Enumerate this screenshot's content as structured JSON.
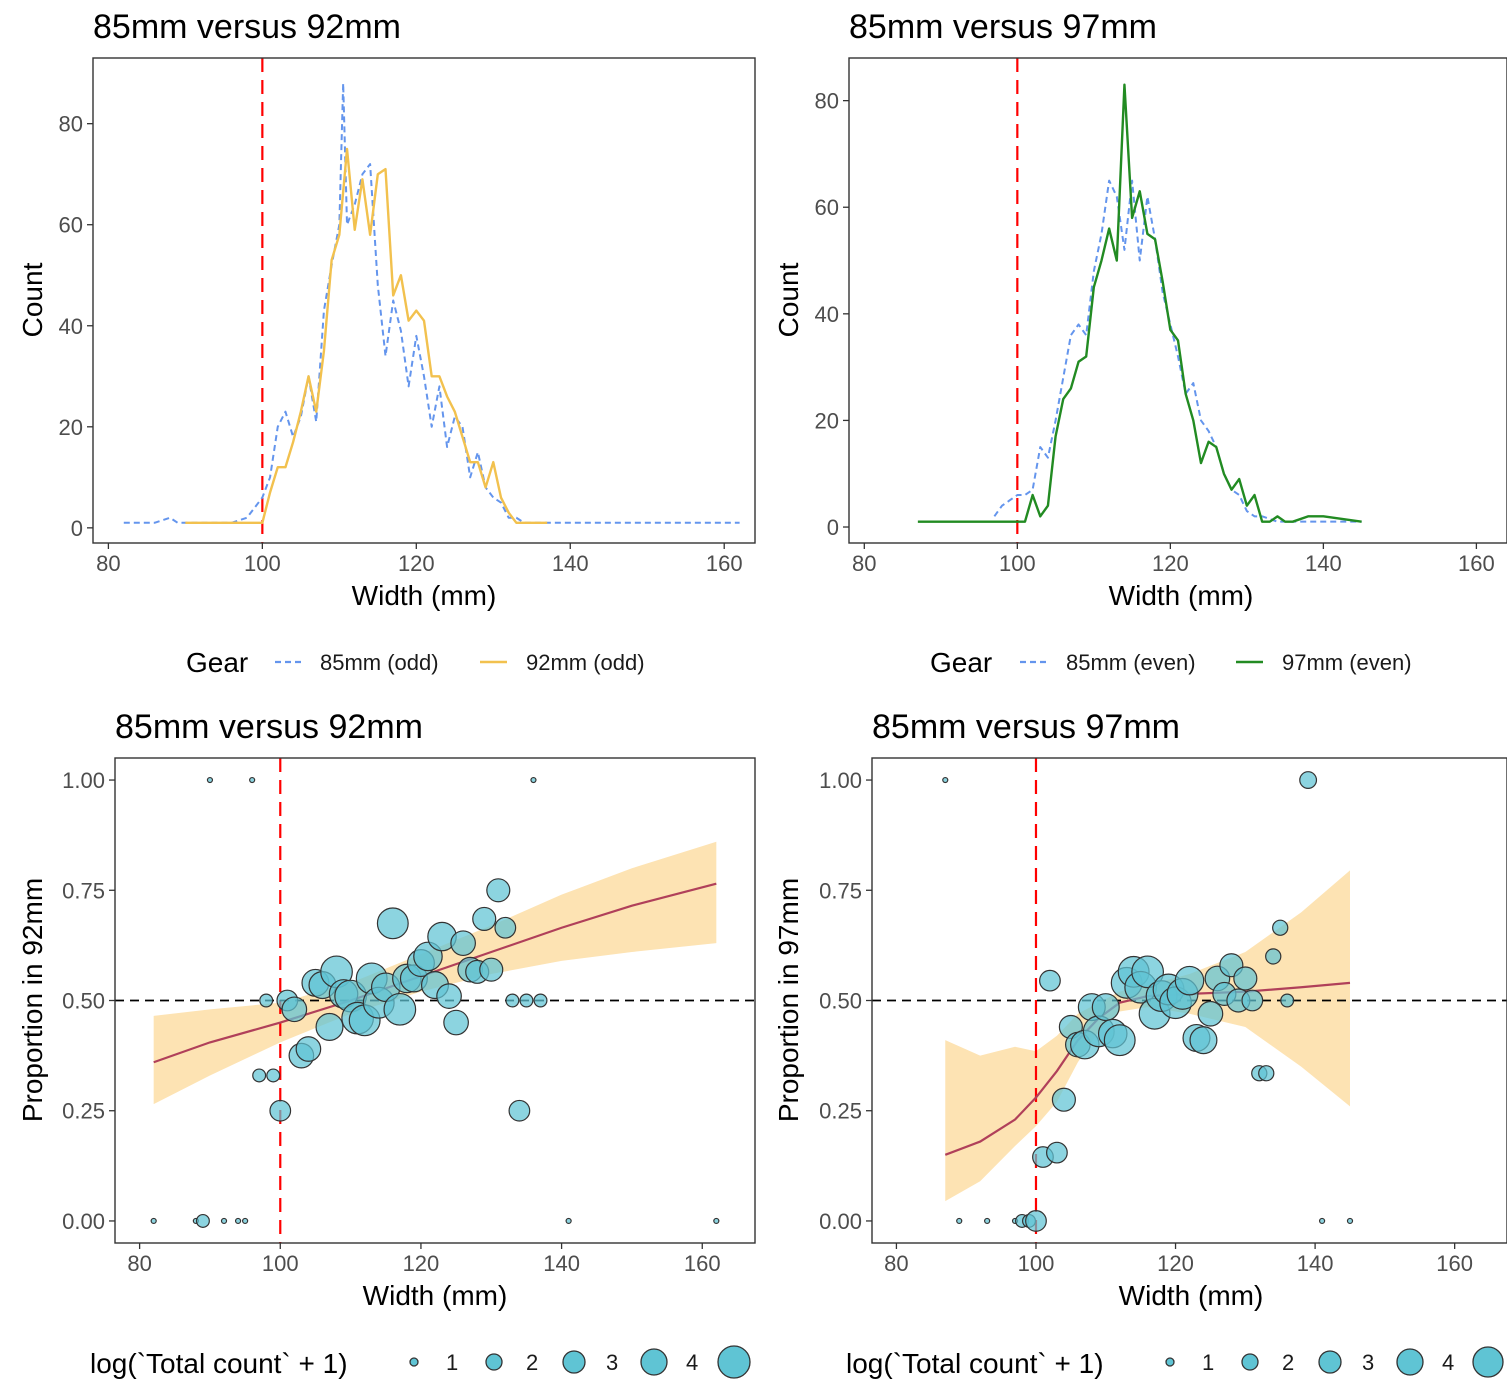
{
  "chart_data": [
    {
      "type": "line",
      "title": "85mm versus 92mm",
      "xlabel": "Width (mm)",
      "ylabel": "Count",
      "xlim": [
        78,
        164
      ],
      "ylim": [
        -3,
        93
      ],
      "xticks": [
        80,
        100,
        120,
        140,
        160
      ],
      "yticks": [
        0,
        20,
        40,
        60,
        80
      ],
      "grid": false,
      "reference_lines": [
        {
          "axis": "x",
          "value": 100,
          "color": "#ff0000",
          "style": "dashed"
        }
      ],
      "legend": {
        "title": "Gear",
        "position": "bottom"
      },
      "series": [
        {
          "name": "85mm (odd)",
          "color": "#6495ed",
          "style": "dashed",
          "x": [
            82,
            86,
            88,
            89,
            90,
            92,
            94,
            96,
            98,
            99,
            100,
            101,
            102,
            103,
            104,
            105,
            106,
            107,
            108,
            109,
            110,
            110.5,
            111,
            112,
            113,
            114,
            115,
            116,
            117,
            118,
            119,
            120,
            121,
            122,
            123,
            124,
            125,
            126,
            127,
            128,
            129,
            130,
            131,
            132,
            133,
            134,
            136,
            140,
            150,
            162
          ],
          "y": [
            1,
            1,
            2,
            1,
            1,
            1,
            1,
            1,
            2,
            4,
            6,
            10,
            20,
            23,
            18,
            22,
            30,
            21,
            43,
            52,
            60,
            88,
            60,
            64,
            70,
            72,
            48,
            34,
            45,
            39,
            28,
            38,
            30,
            20,
            28,
            16,
            22,
            20,
            10,
            15,
            8,
            6,
            5,
            2,
            2,
            1,
            1,
            1,
            1,
            1
          ]
        },
        {
          "name": "92mm (odd)",
          "color": "#f2c14e",
          "style": "solid",
          "x": [
            90,
            94,
            98,
            99,
            100,
            101,
            102,
            103,
            104,
            105,
            106,
            107,
            108,
            109,
            110,
            111,
            112,
            113,
            114,
            115,
            116,
            117,
            118,
            119,
            120,
            121,
            122,
            123,
            124,
            125,
            126,
            127,
            128,
            129,
            130,
            131,
            132,
            133,
            134,
            137
          ],
          "y": [
            1,
            1,
            1,
            1,
            1,
            7,
            12,
            12,
            17,
            23,
            30,
            23,
            35,
            53,
            58,
            75,
            59,
            69,
            58,
            70,
            71,
            46,
            50,
            41,
            43,
            41,
            30,
            30,
            26,
            23,
            18,
            13,
            13,
            8,
            13,
            6,
            3,
            1,
            1,
            1
          ]
        }
      ]
    },
    {
      "type": "line",
      "title": "85mm versus 97mm",
      "xlabel": "Width (mm)",
      "ylabel": "Count",
      "xlim": [
        78,
        164
      ],
      "ylim": [
        -3,
        88
      ],
      "xticks": [
        80,
        100,
        120,
        140,
        160
      ],
      "yticks": [
        0,
        20,
        40,
        60,
        80
      ],
      "grid": false,
      "reference_lines": [
        {
          "axis": "x",
          "value": 100,
          "color": "#ff0000",
          "style": "dashed"
        }
      ],
      "legend": {
        "title": "Gear",
        "position": "bottom"
      },
      "series": [
        {
          "name": "85mm (even)",
          "color": "#6495ed",
          "style": "dashed",
          "x": [
            97,
            98,
            99,
            100,
            101,
            102,
            103,
            104,
            105,
            106,
            107,
            108,
            109,
            110,
            111,
            112,
            113,
            114,
            115,
            116,
            117,
            118,
            119,
            120,
            121,
            122,
            123,
            124,
            125,
            126,
            127,
            128,
            129,
            130,
            131,
            132,
            134,
            136,
            140,
            145
          ],
          "y": [
            2,
            4,
            5,
            6,
            6,
            7,
            15,
            13,
            20,
            28,
            36,
            38,
            36,
            48,
            55,
            65,
            62,
            52,
            65,
            50,
            62,
            54,
            44,
            38,
            32,
            25,
            27,
            20,
            18,
            15,
            10,
            7,
            6,
            3,
            2,
            2,
            1,
            1,
            1,
            1
          ]
        },
        {
          "name": "97mm (even)",
          "color": "#228b22",
          "style": "solid",
          "x": [
            87,
            100,
            101,
            102,
            103,
            104,
            105,
            106,
            107,
            108,
            109,
            110,
            111,
            112,
            113,
            114,
            115,
            116,
            117,
            118,
            119,
            120,
            121,
            122,
            123,
            124,
            125,
            126,
            127,
            128,
            129,
            130,
            131,
            132,
            133,
            134,
            135,
            136,
            138,
            140,
            145
          ],
          "y": [
            1,
            1,
            1,
            6,
            2,
            4,
            17,
            24,
            26,
            31,
            32,
            45,
            50,
            56,
            50,
            83,
            58,
            63,
            55,
            54,
            46,
            37,
            35,
            25,
            20,
            12,
            16,
            15,
            10,
            7,
            9,
            4,
            6,
            1,
            1,
            2,
            1,
            1,
            2,
            2,
            1
          ]
        }
      ]
    },
    {
      "type": "scatter",
      "title": "85mm versus 92mm",
      "xlabel": "Width (mm)",
      "ylabel": "Proportion in 92mm",
      "xlim": [
        76.5,
        167.5
      ],
      "ylim": [
        -0.05,
        1.05
      ],
      "xticks": [
        80,
        100,
        120,
        140,
        160
      ],
      "yticks": [
        "0.00",
        "0.25",
        "0.50",
        "0.75",
        "1.00"
      ],
      "grid": false,
      "reference_lines": [
        {
          "axis": "x",
          "value": 100,
          "color": "#ff0000",
          "style": "dashed"
        },
        {
          "axis": "y",
          "value": 0.5,
          "color": "#000000",
          "style": "dashed"
        }
      ],
      "legend": {
        "title": "log(`Total count` + 1)",
        "position": "bottom",
        "sizes": [
          1,
          2,
          3,
          4
        ]
      },
      "fit": {
        "color": "#b0405a",
        "x": [
          82,
          90,
          100,
          110,
          120,
          130,
          140,
          150,
          162
        ],
        "y": [
          0.36,
          0.405,
          0.45,
          0.5,
          0.555,
          0.61,
          0.665,
          0.715,
          0.765
        ],
        "lower": [
          0.265,
          0.33,
          0.405,
          0.47,
          0.52,
          0.56,
          0.59,
          0.61,
          0.63
        ],
        "upper": [
          0.465,
          0.48,
          0.495,
          0.54,
          0.605,
          0.67,
          0.74,
          0.8,
          0.86
        ]
      },
      "points": {
        "x": [
          82,
          88,
          89,
          92,
          94,
          95,
          90,
          96,
          136,
          141,
          162,
          97,
          99,
          98,
          100,
          101,
          102,
          103,
          104,
          105,
          106,
          107,
          108,
          109,
          110,
          111,
          112,
          113,
          114,
          115,
          116,
          117,
          118,
          119,
          120,
          121,
          122,
          123,
          124,
          125,
          126,
          127,
          128,
          129,
          130,
          131,
          132,
          133,
          134,
          135,
          137
        ],
        "y": [
          0,
          0,
          0,
          0,
          0,
          0,
          1,
          1,
          1,
          0,
          0,
          0.33,
          0.33,
          0.5,
          0.25,
          0.5,
          0.48,
          0.375,
          0.39,
          0.54,
          0.535,
          0.44,
          0.565,
          0.515,
          0.51,
          0.46,
          0.455,
          0.55,
          0.495,
          0.53,
          0.675,
          0.48,
          0.55,
          0.55,
          0.585,
          0.6,
          0.535,
          0.645,
          0.51,
          0.45,
          0.63,
          0.57,
          0.565,
          0.685,
          0.57,
          0.75,
          0.665,
          0.5,
          0.25,
          0.5,
          0.5
        ],
        "size": [
          1,
          1,
          2,
          1,
          1,
          1,
          1,
          1,
          1,
          1,
          1,
          2,
          2,
          2,
          3,
          3,
          3.5,
          3.5,
          3.5,
          3.8,
          3.8,
          3.8,
          4.4,
          4,
          4.4,
          4.4,
          4.3,
          4.3,
          4.3,
          4,
          4.3,
          4.4,
          4,
          3.8,
          3.8,
          4,
          3.8,
          4,
          3.5,
          3.5,
          3.5,
          3.5,
          3.3,
          3.3,
          3.3,
          3.3,
          3,
          2,
          3,
          2,
          2
        ],
        "color": "#5fc4d4"
      }
    },
    {
      "type": "scatter",
      "title": "85mm versus 97mm",
      "xlabel": "Width (mm)",
      "ylabel": "Proportion in 97mm",
      "xlim": [
        76.5,
        167.5
      ],
      "ylim": [
        -0.05,
        1.05
      ],
      "xticks": [
        80,
        100,
        120,
        140,
        160
      ],
      "yticks": [
        "0.00",
        "0.25",
        "0.50",
        "0.75",
        "1.00"
      ],
      "grid": false,
      "reference_lines": [
        {
          "axis": "x",
          "value": 100,
          "color": "#ff0000",
          "style": "dashed"
        },
        {
          "axis": "y",
          "value": 0.5,
          "color": "#000000",
          "style": "dashed"
        }
      ],
      "legend": {
        "title": "log(`Total count` + 1)",
        "position": "bottom",
        "sizes": [
          1,
          2,
          3,
          4
        ]
      },
      "fit": {
        "color": "#b0405a",
        "x": [
          87,
          92,
          97,
          100,
          103,
          106,
          109,
          112,
          116,
          122,
          130,
          138,
          145
        ],
        "y": [
          0.15,
          0.18,
          0.23,
          0.28,
          0.34,
          0.41,
          0.46,
          0.495,
          0.51,
          0.515,
          0.52,
          0.53,
          0.54
        ],
        "lower": [
          0.045,
          0.09,
          0.17,
          0.215,
          0.27,
          0.36,
          0.43,
          0.475,
          0.485,
          0.47,
          0.44,
          0.35,
          0.26
        ],
        "upper": [
          0.41,
          0.375,
          0.395,
          0.385,
          0.42,
          0.47,
          0.495,
          0.52,
          0.535,
          0.56,
          0.61,
          0.7,
          0.795
        ]
      },
      "points": {
        "x": [
          87,
          89,
          93,
          97,
          98,
          99,
          100,
          101,
          102,
          103,
          104,
          105,
          106,
          107,
          108,
          109,
          110,
          111,
          112,
          113,
          114,
          115,
          116,
          117,
          118,
          119,
          120,
          121,
          122,
          123,
          124,
          125,
          126,
          127,
          128,
          129,
          130,
          131,
          132,
          133,
          134,
          135,
          136,
          139,
          141,
          145
        ],
        "y": [
          1,
          0,
          0,
          0,
          0,
          0,
          0,
          0.145,
          0.545,
          0.155,
          0.275,
          0.44,
          0.4,
          0.4,
          0.485,
          0.43,
          0.485,
          0.425,
          0.41,
          0.54,
          0.565,
          0.53,
          0.565,
          0.47,
          0.51,
          0.525,
          0.495,
          0.515,
          0.545,
          0.415,
          0.41,
          0.47,
          0.55,
          0.515,
          0.58,
          0.5,
          0.55,
          0.5,
          0.335,
          0.335,
          0.6,
          0.665,
          0.5,
          1,
          0,
          0
        ],
        "size": [
          1,
          1,
          1,
          1,
          2,
          2,
          3,
          3,
          3,
          3,
          3.3,
          3.3,
          3.5,
          4,
          3.8,
          4.3,
          3.8,
          4,
          4.3,
          4.3,
          4.3,
          4.4,
          4.4,
          4.3,
          4.3,
          4.3,
          4.4,
          4.3,
          4,
          3.8,
          3.8,
          3.5,
          3.5,
          3.3,
          3.3,
          3.3,
          3.3,
          3,
          2.3,
          2.3,
          2.3,
          2.3,
          2,
          2.5,
          1,
          1
        ],
        "color": "#5fc4d4"
      }
    }
  ]
}
